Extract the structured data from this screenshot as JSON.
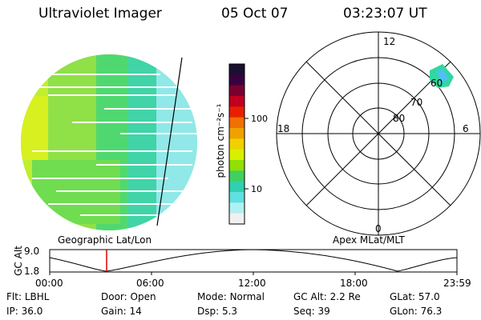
{
  "header": {
    "instrument": "Ultraviolet Imager",
    "date": "05 Oct 07",
    "time": "03:23:07 UT"
  },
  "colorbar": {
    "unit_label": "photon cm⁻²s⁻¹",
    "ticks": [
      "100",
      "10"
    ],
    "colors": [
      "#1a1030",
      "#3a0040",
      "#7a0030",
      "#c00020",
      "#e82000",
      "#f07000",
      "#f0a000",
      "#f0d000",
      "#d8f000",
      "#90e000",
      "#40d060",
      "#30d0b0",
      "#60e0e0",
      "#b0f0f0",
      "#f0f0f0"
    ]
  },
  "images": {
    "left_caption": "Geographic Lat/Lon",
    "right_caption": "Apex MLat/MLT"
  },
  "polar": {
    "mlt_labels": [
      "12",
      "18",
      "6",
      "0"
    ],
    "lat_labels": [
      "60",
      "70",
      "80"
    ]
  },
  "orbit": {
    "axis_label": "GC Alt",
    "y_ticks": [
      "9.0",
      "1.8"
    ],
    "x_ticks": [
      "00:00",
      "06:00",
      "12:00",
      "18:00",
      "23:59"
    ],
    "marker_color": "#e00000"
  },
  "status": {
    "row1": [
      {
        "key": "Flt:",
        "val": "LBHL"
      },
      {
        "key": "Door:",
        "val": "Open"
      },
      {
        "key": "Mode:",
        "val": "Normal"
      },
      {
        "key": "GC Alt:",
        "val": "2.2 Re"
      },
      {
        "key": "GLat:",
        "val": "57.0"
      }
    ],
    "row2": [
      {
        "key": "IP:",
        "val": "36.0"
      },
      {
        "key": "Gain:",
        "val": "14"
      },
      {
        "key": "Dsp:",
        "val": "5.3"
      },
      {
        "key": "Seq:",
        "val": "39"
      },
      {
        "key": "GLon:",
        "val": "76.3"
      }
    ]
  }
}
